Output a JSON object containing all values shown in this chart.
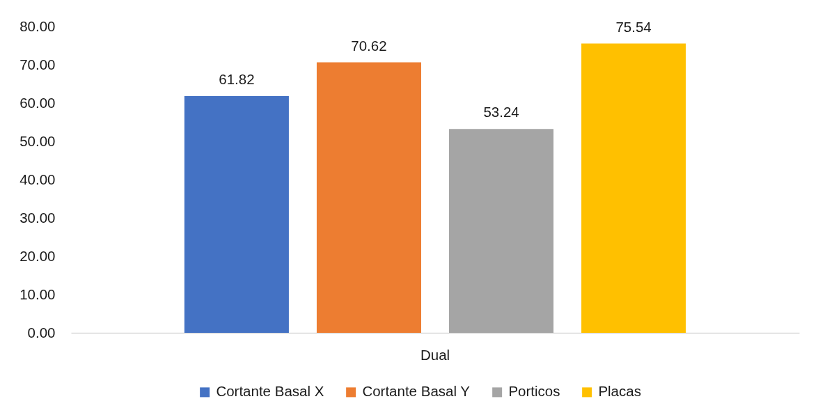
{
  "chart_data": {
    "type": "bar",
    "categories": [
      "Dual"
    ],
    "series": [
      {
        "name": "Cortante Basal X",
        "color": "#4472c4",
        "values": [
          61.82
        ]
      },
      {
        "name": "Cortante Basal Y",
        "color": "#ed7d31",
        "values": [
          70.62
        ]
      },
      {
        "name": "Porticos",
        "color": "#a5a5a5",
        "values": [
          53.24
        ]
      },
      {
        "name": "Placas",
        "color": "#ffc000",
        "values": [
          75.54
        ]
      }
    ],
    "ylim": [
      0,
      80
    ],
    "yticks": [
      {
        "value": 0,
        "label": "0.00"
      },
      {
        "value": 10,
        "label": "10.00"
      },
      {
        "value": 20,
        "label": "20.00"
      },
      {
        "value": 30,
        "label": "30.00"
      },
      {
        "value": 40,
        "label": "40.00"
      },
      {
        "value": 50,
        "label": "50.00"
      },
      {
        "value": 60,
        "label": "60.00"
      },
      {
        "value": 70,
        "label": "70.00"
      },
      {
        "value": 80,
        "label": "80.00"
      }
    ],
    "legend": "bottom",
    "data_labels": true
  }
}
